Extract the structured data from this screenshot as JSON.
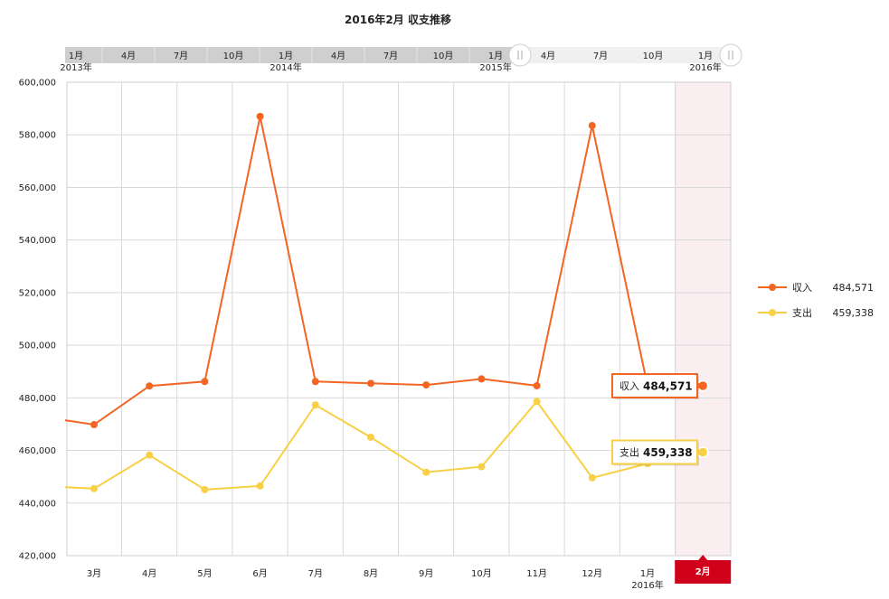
{
  "chart_data": {
    "type": "line",
    "title": "2016年2月 収支推移",
    "x_labels": [
      "",
      "3月",
      "4月",
      "5月",
      "6月",
      "7月",
      "8月",
      "9月",
      "10月",
      "11月",
      "12月",
      "1月",
      "2月"
    ],
    "x_sublabels": [
      "",
      "",
      "",
      "",
      "",
      "",
      "",
      "",
      "",
      "",
      "",
      "2016年",
      ""
    ],
    "selected_label": "2月",
    "ylim": [
      420000,
      600000
    ],
    "yticks": [
      420000,
      440000,
      460000,
      480000,
      500000,
      520000,
      540000,
      560000,
      580000,
      600000
    ],
    "ytick_labels": [
      "420,000",
      "440,000",
      "460,000",
      "480,000",
      "500,000",
      "520,000",
      "540,000",
      "560,000",
      "580,000",
      "600,000"
    ],
    "series": [
      {
        "name": "収入",
        "color": "#f26522",
        "values": [
          471500,
          469800,
          484500,
          486200,
          587000,
          486200,
          485500,
          484900,
          487200,
          484600,
          583500,
          484571,
          484571
        ],
        "legend_value": "484,571",
        "tooltip_value": "484,571"
      },
      {
        "name": "支出",
        "color": "#f7d046",
        "values": [
          446000,
          445500,
          458200,
          445100,
          446500,
          477300,
          465000,
          451700,
          453800,
          478600,
          449600,
          455000,
          459338
        ],
        "legend_value": "459,338",
        "tooltip_value": "459,338"
      }
    ],
    "grid": true,
    "legend_position": "right"
  },
  "navigator": {
    "month_labels": [
      "1月",
      "4月",
      "7月",
      "10月",
      "1月",
      "4月",
      "7月",
      "10月",
      "1月",
      "4月",
      "7月",
      "10月",
      "1月"
    ],
    "year_labels": [
      "2013年",
      "",
      "",
      "",
      "2014年",
      "",
      "",
      "",
      "2015年",
      "",
      "",
      "",
      "2016年"
    ]
  }
}
